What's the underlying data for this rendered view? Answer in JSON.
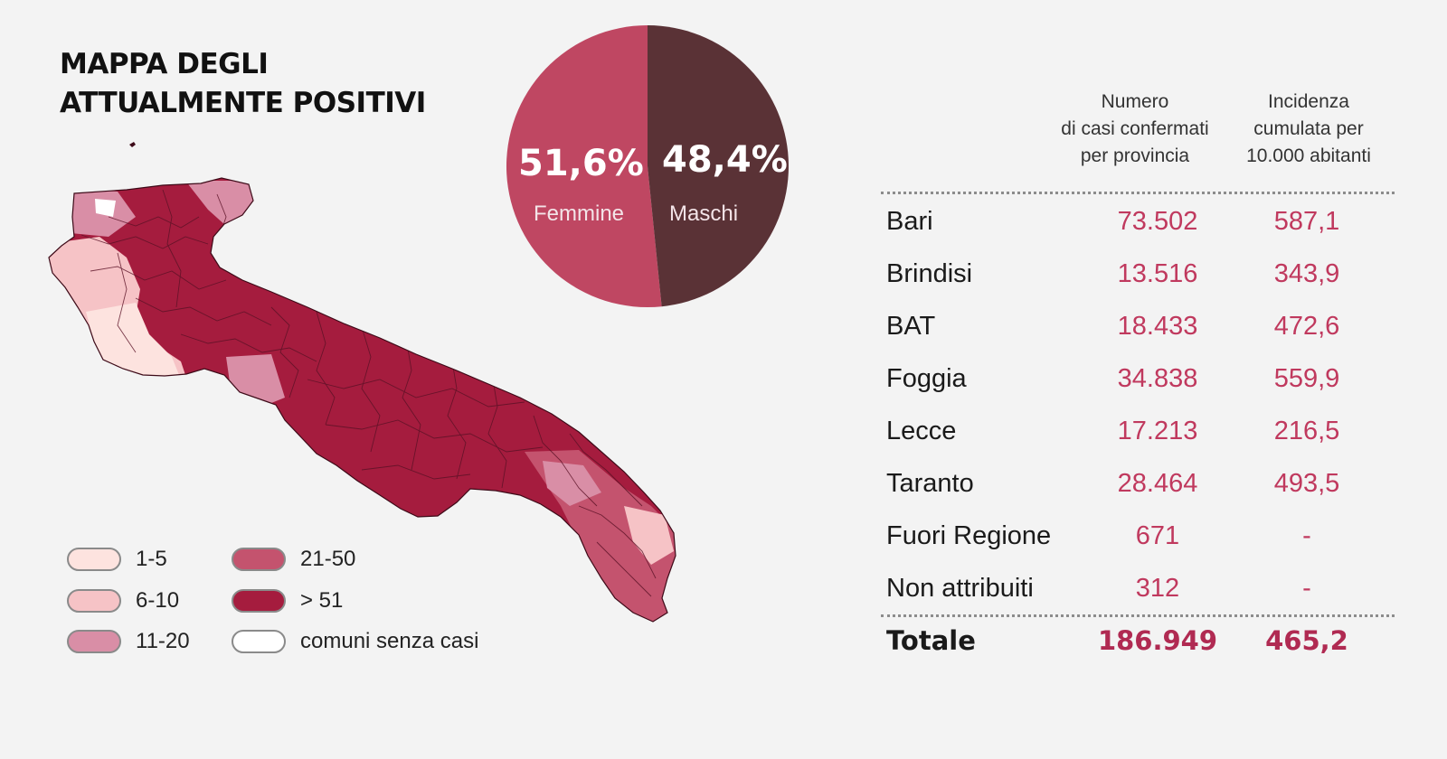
{
  "title": {
    "line1": "MAPPA DEGLI",
    "line2": "ATTUALMENTE POSITIVI"
  },
  "legend": [
    {
      "label": "1-5",
      "color": "#fde3df"
    },
    {
      "label": "6-10",
      "color": "#f6c3c6"
    },
    {
      "label": "11-20",
      "color": "#d98ea6"
    },
    {
      "label": "21-50",
      "color": "#c4536e"
    },
    {
      "label": "> 51",
      "color": "#a51c3e"
    },
    {
      "label": "comuni senza casi",
      "color": "#ffffff"
    }
  ],
  "gender": {
    "female": {
      "pct": "51,6%",
      "label": "Femmine",
      "value": 51.6,
      "color": "#bf4762"
    },
    "male": {
      "pct": "48,4%",
      "label": "Maschi",
      "value": 48.4,
      "color": "#5a3236"
    }
  },
  "table": {
    "header_cases": [
      "Numero",
      "di casi confermati",
      "per provincia"
    ],
    "header_incidence": [
      "Incidenza",
      "cumulata per",
      "10.000 abitanti"
    ],
    "rows": [
      {
        "name": "Bari",
        "cases": "73.502",
        "incidence": "587,1"
      },
      {
        "name": "Brindisi",
        "cases": "13.516",
        "incidence": "343,9"
      },
      {
        "name": "BAT",
        "cases": "18.433",
        "incidence": "472,6"
      },
      {
        "name": "Foggia",
        "cases": "34.838",
        "incidence": "559,9"
      },
      {
        "name": "Lecce",
        "cases": "17.213",
        "incidence": "216,5"
      },
      {
        "name": "Taranto",
        "cases": "28.464",
        "incidence": "493,5"
      },
      {
        "name": "Fuori Regione",
        "cases": "671",
        "incidence": "-"
      },
      {
        "name": "Non attribuiti",
        "cases": "312",
        "incidence": "-"
      }
    ],
    "total": {
      "name": "Totale",
      "cases": "186.949",
      "incidence": "465,2"
    }
  }
}
